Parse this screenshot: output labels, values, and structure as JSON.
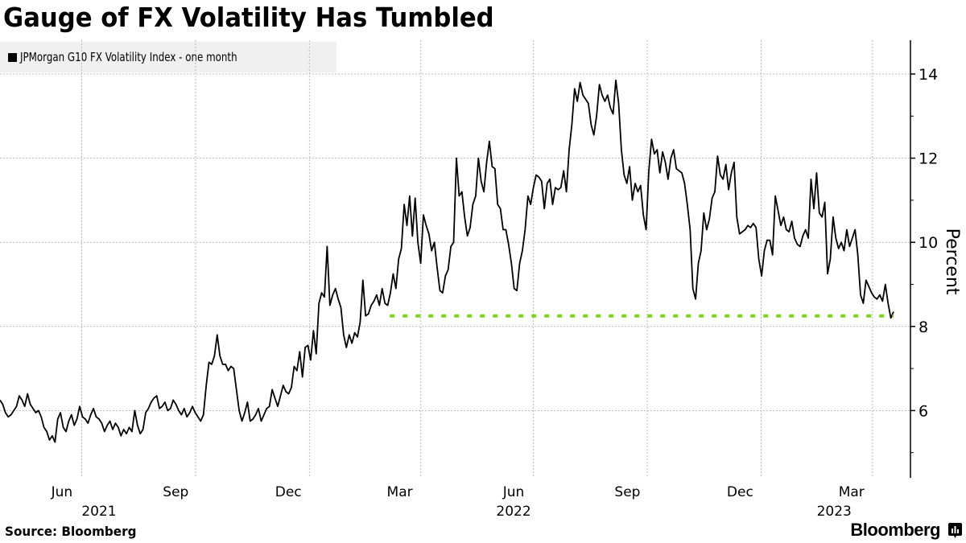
{
  "title": "Gauge of FX Volatility Has Tumbled",
  "footer": {
    "source": "Source: Bloomberg",
    "brand": "Bloomberg",
    "brand_icon": "bloomberg-chart-icon"
  },
  "chart_data": {
    "type": "line",
    "title": "Gauge of FX Volatility Has Tumbled",
    "xlabel": "",
    "ylabel": "Percent",
    "ylim": [
      4.6,
      14.8
    ],
    "yticks": [
      6,
      8,
      10,
      12,
      14
    ],
    "yminor": [
      5,
      7,
      9,
      11,
      13
    ],
    "grid": true,
    "legend_position": "top-left",
    "x_range": [
      "2021-04-26",
      "2023-04-18"
    ],
    "xticks": [
      {
        "label": "Jun",
        "year": "2021",
        "month": "2021-06"
      },
      {
        "label": "Sep",
        "year": "",
        "month": "2021-09"
      },
      {
        "label": "Dec",
        "year": "",
        "month": "2021-12"
      },
      {
        "label": "Mar",
        "year": "",
        "month": "2022-03"
      },
      {
        "label": "Jun",
        "year": "2022",
        "month": "2022-06"
      },
      {
        "label": "Sep",
        "year": "",
        "month": "2022-09"
      },
      {
        "label": "Dec",
        "year": "",
        "month": "2022-12"
      },
      {
        "label": "Mar",
        "year": "2023",
        "month": "2023-03"
      }
    ],
    "year_labels": [
      {
        "label": "2021",
        "month": "2021-07-15"
      },
      {
        "label": "2022",
        "month": "2022-06-15"
      },
      {
        "label": "2023",
        "month": "2023-03-01"
      }
    ],
    "series": [
      {
        "name": "JPMorgan G10 FX Volatility Index - one month",
        "color": "#000000",
        "start": "2021-04-26",
        "step_days": 3.5,
        "values": [
          6.25,
          6.15,
          5.95,
          5.85,
          5.9,
          6.0,
          6.1,
          6.35,
          6.25,
          6.1,
          6.4,
          6.15,
          6.05,
          5.95,
          6.0,
          5.85,
          5.6,
          5.5,
          5.3,
          5.4,
          5.25,
          5.8,
          5.95,
          5.6,
          5.5,
          5.75,
          5.9,
          5.65,
          5.8,
          6.1,
          5.85,
          5.8,
          5.7,
          5.9,
          6.05,
          5.85,
          5.8,
          5.7,
          5.5,
          5.65,
          5.75,
          5.55,
          5.7,
          5.6,
          5.4,
          5.55,
          5.45,
          5.6,
          5.5,
          6.0,
          5.65,
          5.45,
          5.55,
          5.95,
          6.05,
          6.2,
          6.3,
          6.35,
          6.05,
          6.1,
          6.2,
          6.0,
          6.05,
          6.25,
          6.15,
          6.0,
          5.9,
          6.05,
          5.85,
          5.95,
          6.1,
          5.95,
          5.85,
          5.75,
          5.9,
          6.6,
          7.15,
          7.1,
          7.3,
          7.8,
          7.3,
          7.1,
          7.1,
          6.95,
          7.05,
          7.0,
          6.5,
          6.0,
          5.75,
          5.95,
          6.2,
          5.75,
          5.8,
          5.9,
          6.05,
          5.75,
          5.9,
          6.05,
          6.1,
          6.5,
          6.3,
          6.1,
          6.35,
          6.6,
          6.45,
          6.4,
          6.55,
          7.05,
          6.95,
          7.4,
          6.8,
          7.5,
          7.55,
          7.2,
          7.9,
          7.35,
          8.55,
          8.8,
          8.7,
          9.9,
          8.5,
          8.75,
          8.9,
          8.65,
          8.45,
          7.8,
          7.5,
          7.8,
          7.6,
          7.85,
          7.75,
          8.1,
          9.1,
          8.25,
          8.3,
          8.5,
          8.6,
          8.75,
          8.5,
          8.9,
          8.55,
          8.5,
          8.8,
          9.25,
          8.9,
          9.6,
          9.85,
          10.9,
          10.4,
          11.1,
          10.15,
          11.05,
          10.0,
          9.5,
          10.65,
          10.4,
          10.2,
          9.8,
          10.0,
          9.4,
          8.85,
          8.8,
          9.2,
          9.35,
          9.9,
          10.0,
          12.0,
          11.1,
          11.2,
          10.6,
          10.15,
          10.35,
          10.9,
          11.1,
          12.0,
          11.45,
          11.2,
          11.9,
          12.4,
          11.8,
          11.75,
          10.9,
          10.8,
          10.3,
          10.3,
          9.95,
          9.5,
          8.9,
          8.85,
          9.5,
          9.8,
          10.3,
          11.1,
          10.9,
          11.3,
          11.6,
          11.55,
          11.45,
          10.8,
          11.4,
          11.5,
          10.9,
          11.3,
          11.25,
          11.3,
          11.7,
          11.2,
          12.2,
          12.8,
          13.65,
          13.35,
          13.8,
          13.5,
          13.4,
          13.3,
          12.8,
          12.55,
          13.0,
          13.75,
          13.5,
          13.35,
          13.5,
          13.2,
          13.05,
          13.85,
          13.3,
          12.2,
          11.6,
          11.4,
          11.8,
          11.0,
          11.4,
          11.2,
          11.35,
          10.65,
          10.3,
          11.7,
          12.45,
          12.1,
          12.2,
          11.65,
          12.15,
          11.9,
          11.5,
          12.0,
          12.2,
          11.75,
          11.7,
          11.65,
          11.4,
          10.9,
          10.3,
          8.9,
          8.65,
          9.5,
          9.8,
          10.7,
          10.3,
          10.55,
          11.05,
          11.2,
          12.05,
          11.6,
          11.5,
          11.85,
          11.25,
          11.65,
          11.9,
          10.6,
          10.2,
          10.25,
          10.3,
          10.4,
          10.35,
          10.45,
          10.35,
          9.6,
          9.2,
          9.8,
          10.05,
          10.05,
          9.7,
          11.1,
          10.75,
          10.4,
          10.6,
          10.3,
          10.25,
          10.5,
          10.1,
          9.95,
          9.9,
          10.15,
          10.3,
          10.1,
          11.5,
          10.8,
          11.65,
          10.7,
          10.6,
          10.95,
          9.25,
          9.6,
          10.6,
          10.1,
          9.85,
          10.0,
          9.8,
          10.3,
          9.9,
          10.1,
          10.3,
          9.7,
          8.75,
          8.55,
          9.1,
          8.95,
          8.8,
          8.7,
          8.65,
          8.75,
          8.6,
          9.0,
          8.55,
          8.2,
          8.35
        ]
      }
    ],
    "reference_line": {
      "value": 8.25,
      "from": "2022-03-07",
      "to": "2023-04-18",
      "color": "#7ed321",
      "style": "dotted"
    }
  }
}
